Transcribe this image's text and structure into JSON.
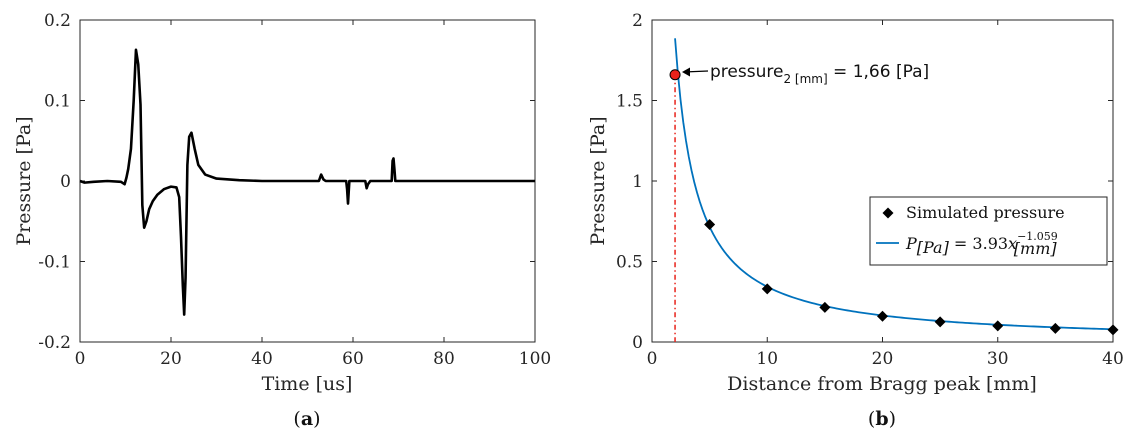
{
  "chart_data": [
    {
      "type": "line",
      "panel_label": "a",
      "xlabel": "Time [us]",
      "ylabel": "Pressure [Pa]",
      "xlim": [
        0,
        100
      ],
      "ylim": [
        -0.2,
        0.2
      ],
      "xticks": [
        "0",
        "20",
        "40",
        "60",
        "80",
        "100"
      ],
      "yticks": [
        "-0.2",
        "-0.1",
        "0",
        "0.1",
        "0.2"
      ],
      "grid": false,
      "series": [
        {
          "color": "#000000",
          "x": [
            0,
            1,
            3,
            6,
            9,
            9.8,
            10.2,
            10.6,
            11.2,
            11.8,
            12.3,
            12.8,
            13.3,
            13.7,
            14.1,
            14.6,
            15.2,
            16,
            17,
            18.5,
            20,
            21.2,
            21.8,
            22.2,
            22.6,
            22.9,
            23.2,
            23.6,
            24,
            24.5,
            25.2,
            26,
            27.5,
            30,
            35,
            40,
            45,
            50,
            52.5,
            53,
            53.5,
            54,
            57,
            58.5,
            58.7,
            58.9,
            59.2,
            60,
            62.7,
            63,
            63.3,
            63.8,
            68.5,
            68.7,
            68.9,
            69.1,
            69.3,
            70,
            80,
            90,
            100
          ],
          "y": [
            0,
            -0.002,
            -0.001,
            0,
            -0.001,
            -0.004,
            0.004,
            0.015,
            0.04,
            0.1,
            0.163,
            0.145,
            0.095,
            -0.03,
            -0.058,
            -0.05,
            -0.035,
            -0.025,
            -0.017,
            -0.01,
            -0.007,
            -0.008,
            -0.02,
            -0.07,
            -0.13,
            -0.166,
            -0.12,
            0.02,
            0.055,
            0.06,
            0.04,
            0.02,
            0.008,
            0.003,
            0.001,
            0,
            0,
            0,
            0,
            0.008,
            0.002,
            0,
            0,
            0,
            -0.01,
            -0.028,
            0,
            0,
            0,
            -0.009,
            -0.004,
            0,
            0,
            0.025,
            0.028,
            0.015,
            0,
            0,
            0,
            0,
            0
          ]
        }
      ]
    },
    {
      "type": "scatter",
      "panel_label": "b",
      "xlabel": "Distance from Bragg peak [mm]",
      "ylabel": "Pressure [Pa]",
      "xlim": [
        0,
        40
      ],
      "ylim": [
        0,
        2
      ],
      "xticks": [
        "0",
        "10",
        "20",
        "30",
        "40"
      ],
      "yticks": [
        "0",
        "0.5",
        "1",
        "1.5",
        "2"
      ],
      "grid": false,
      "legend_position": "center-right",
      "series": [
        {
          "name": "Simulated pressure",
          "kind": "markers",
          "color": "#000000",
          "x": [
            5,
            10,
            15,
            20,
            25,
            30,
            35,
            40
          ],
          "y": [
            0.73,
            0.33,
            0.215,
            0.16,
            0.125,
            0.1,
            0.085,
            0.075
          ]
        },
        {
          "name": "fit",
          "kind": "line",
          "color": "#0072bd",
          "fit": {
            "a": 3.93,
            "b": -1.059
          },
          "x_range": [
            2,
            40
          ]
        }
      ],
      "legend_fit": {
        "lhs": "P",
        "lhs_sub": "[Pa]",
        "eq": " = 3.93",
        "var": "x",
        "exp": "−1.059",
        "var_sub": "[mm]"
      },
      "highlight": {
        "x": 2,
        "y": 1.66,
        "marker_color": "#e8221b",
        "line_color": "#e8221b"
      },
      "annotation": {
        "prefix": "pressure",
        "sub": "2 [mm]",
        "suffix": " = 1,66 [Pa]"
      }
    }
  ]
}
